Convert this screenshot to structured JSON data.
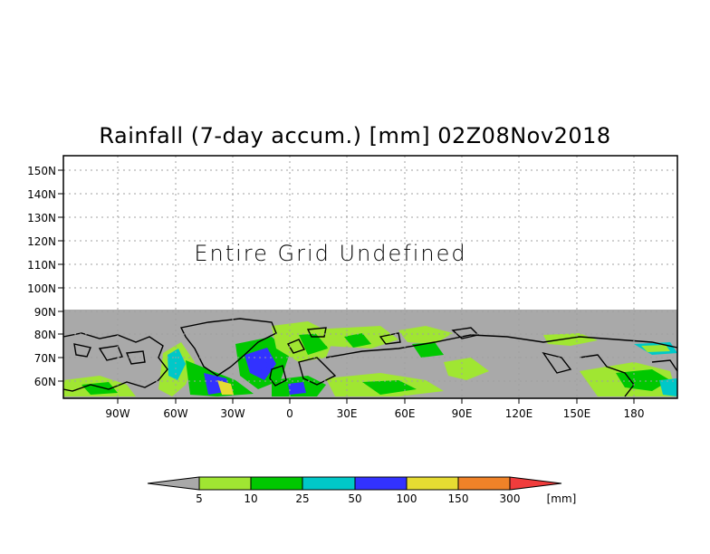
{
  "title": "Rainfall (7-day accum.) [mm] 02Z08Nov2018",
  "annotation": "Entire Grid Undefined",
  "y_axis_labels": [
    "60N",
    "70N",
    "80N",
    "90N",
    "100N",
    "110N",
    "120N",
    "130N",
    "140N",
    "150N"
  ],
  "x_axis_labels": [
    "90W",
    "60W",
    "30W",
    "0",
    "30E",
    "60E",
    "90E",
    "120E",
    "150E",
    "180"
  ],
  "colorbar": {
    "labels": [
      "5",
      "10",
      "25",
      "50",
      "100",
      "150",
      "300"
    ],
    "unit": "[mm]",
    "colors": [
      "#a9a9a9",
      "#a0e632",
      "#00c800",
      "#00c8c8",
      "#3232ff",
      "#e6dc32",
      "#f08228",
      "#f03c3c"
    ]
  },
  "colors": {
    "undefined_gray": "#a9a9a9",
    "grid_line": "#a0a0a0",
    "coastline": "#000000"
  }
}
